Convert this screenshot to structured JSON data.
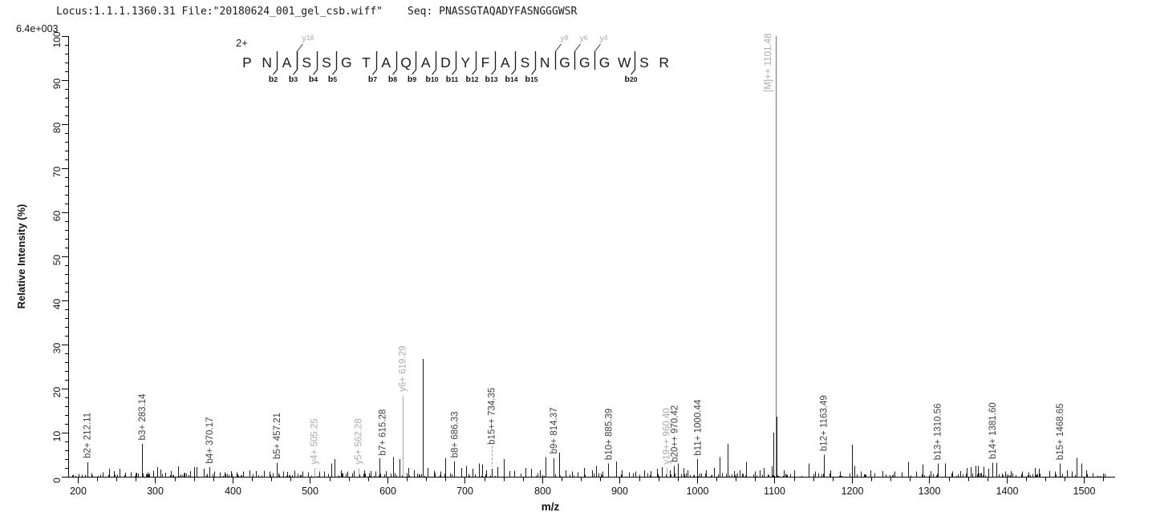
{
  "header": {
    "locus_file": "Locus:1.1.1.1360.31 File:\"20180624_001_gel_csb.wiff\"",
    "seq": "Seq: PNASSGTAQADYFASNGGGWSR"
  },
  "chart_data": {
    "type": "bar",
    "subtype": "mass-spectrum",
    "title": "",
    "xlabel": "m/z",
    "ylabel": "Relative Intensity (%)",
    "y_axis_top_label": "6.4e+003",
    "xlim": [
      187,
      1540
    ],
    "ylim": [
      0,
      100
    ],
    "x_ticks": [
      200,
      300,
      400,
      500,
      600,
      700,
      800,
      900,
      1000,
      1100,
      1200,
      1300,
      1400,
      1500
    ],
    "x_minor_step": 25,
    "y_ticks": [
      0,
      10,
      20,
      30,
      40,
      50,
      60,
      70,
      80,
      90,
      100
    ],
    "y_minor_step": 2,
    "grid": false,
    "colors": {
      "peak": "#1c1c1c",
      "y_ion": "#aaaaaa",
      "precursor": "#757575",
      "b_label": "#3e3e3e",
      "y_label": "#a9a9a9",
      "axis": "#000000"
    },
    "precursor": {
      "charge": "2+",
      "sequence": "PNASSGTAQADYFASNGGGWSR"
    },
    "sequence_annotation": {
      "charge": "2+",
      "residues": [
        "P",
        "N",
        "A",
        "S",
        "S",
        "G",
        "T",
        "A",
        "Q",
        "A",
        "D",
        "Y",
        "F",
        "A",
        "S",
        "N",
        "G",
        "G",
        "G",
        "W",
        "S",
        "R"
      ],
      "b_marks": [
        {
          "after": 2,
          "pre": "b",
          "num": "2"
        },
        {
          "after": 3,
          "pre": "b",
          "num": "3"
        },
        {
          "after": 4,
          "pre": "b",
          "num": "4"
        },
        {
          "after": 5,
          "pre": "b",
          "num": "5"
        },
        {
          "after": 7,
          "pre": "b",
          "num": "7"
        },
        {
          "after": 8,
          "pre": "b",
          "num": "8"
        },
        {
          "after": 9,
          "pre": "b",
          "num": "9"
        },
        {
          "after": 10,
          "pre": "b",
          "num": "10"
        },
        {
          "after": 11,
          "pre": "b",
          "num": "11"
        },
        {
          "after": 12,
          "pre": "b",
          "num": "12"
        },
        {
          "after": 13,
          "pre": "b",
          "num": "13"
        },
        {
          "after": 14,
          "pre": "b",
          "num": "14"
        },
        {
          "after": 15,
          "pre": "b",
          "num": "15"
        },
        {
          "after": 20,
          "pre": "b",
          "num": "20"
        }
      ],
      "y_marks": [
        {
          "after": 3,
          "pre": "y",
          "num": "18"
        },
        {
          "after": 16,
          "pre": "y",
          "num": "8"
        },
        {
          "after": 17,
          "pre": "y",
          "num": "6"
        },
        {
          "after": 18,
          "pre": "y",
          "num": "4"
        }
      ]
    },
    "peaks": [
      [
        212.11,
        3.3
      ],
      [
        218,
        0.8
      ],
      [
        232,
        1.0
      ],
      [
        240,
        1.8
      ],
      [
        247,
        1.3
      ],
      [
        254,
        1.8
      ],
      [
        261,
        0.9
      ],
      [
        268,
        1.0
      ],
      [
        276,
        0.9
      ],
      [
        283.14,
        7.5
      ],
      [
        290,
        1.0
      ],
      [
        297,
        1.4
      ],
      [
        303,
        2.2
      ],
      [
        307,
        1.6
      ],
      [
        313,
        0.9
      ],
      [
        320,
        1.3
      ],
      [
        330,
        2.4
      ],
      [
        338,
        0.9
      ],
      [
        345,
        1.3
      ],
      [
        350,
        2.2
      ],
      [
        353,
        2.2
      ],
      [
        363,
        1.8
      ],
      [
        370.17,
        2.2
      ],
      [
        376,
        1.2
      ],
      [
        383,
        1.0
      ],
      [
        390,
        1.0
      ],
      [
        398,
        1.3
      ],
      [
        405,
        1.0
      ],
      [
        413,
        1.2
      ],
      [
        422,
        1.5
      ],
      [
        430,
        1.3
      ],
      [
        440,
        1.4
      ],
      [
        448,
        1.2
      ],
      [
        457.21,
        3.2
      ],
      [
        465,
        1.2
      ],
      [
        470,
        1.1
      ],
      [
        480,
        1.4
      ],
      [
        490,
        1.2
      ],
      [
        497,
        1.0
      ],
      [
        505.25,
        2.0,
        "y"
      ],
      [
        512,
        1.2
      ],
      [
        518,
        1.2
      ],
      [
        527,
        3.0
      ],
      [
        532,
        4.0
      ],
      [
        540,
        1.5
      ],
      [
        548,
        1.2
      ],
      [
        556,
        1.4
      ],
      [
        562.28,
        2.0,
        "y"
      ],
      [
        570,
        1.5
      ],
      [
        578,
        1.3
      ],
      [
        585,
        1.2
      ],
      [
        590,
        4.2
      ],
      [
        598,
        1.3
      ],
      [
        607,
        4.5
      ],
      [
        615.28,
        4.0
      ],
      [
        619.29,
        18.5,
        "y"
      ],
      [
        627,
        2.0
      ],
      [
        634,
        1.5
      ],
      [
        645.7,
        26.7
      ],
      [
        652,
        2.0
      ],
      [
        660,
        1.4
      ],
      [
        668,
        1.2
      ],
      [
        675,
        4.2
      ],
      [
        686.33,
        3.5
      ],
      [
        695,
        2.0
      ],
      [
        702,
        2.5
      ],
      [
        710,
        1.8
      ],
      [
        718,
        3.0
      ],
      [
        722,
        2.8
      ],
      [
        728,
        1.5
      ],
      [
        734.35,
        1.8
      ],
      [
        742,
        2.2
      ],
      [
        750,
        4.0
      ],
      [
        758,
        1.3
      ],
      [
        764,
        1.4
      ],
      [
        778,
        2.0
      ],
      [
        786,
        1.8
      ],
      [
        797,
        1.5
      ],
      [
        804,
        4.5
      ],
      [
        814.37,
        4.2
      ],
      [
        822,
        5.5
      ],
      [
        830,
        1.5
      ],
      [
        838,
        1.2
      ],
      [
        846,
        1.0
      ],
      [
        854,
        2.0
      ],
      [
        864,
        1.5
      ],
      [
        870,
        2.5
      ],
      [
        878,
        1.2
      ],
      [
        885.39,
        3.0
      ],
      [
        895,
        3.5
      ],
      [
        903,
        1.5
      ],
      [
        912,
        1.0
      ],
      [
        920,
        1.2
      ],
      [
        932,
        1.5
      ],
      [
        940,
        1.3
      ],
      [
        948,
        1.8
      ],
      [
        955,
        2.2
      ],
      [
        960.4,
        2.0,
        "y"
      ],
      [
        965,
        1.5
      ],
      [
        970.42,
        2.5
      ],
      [
        975,
        3.0
      ],
      [
        982,
        2.0
      ],
      [
        988,
        1.5
      ],
      [
        1000.44,
        4.0
      ],
      [
        1012,
        1.5
      ],
      [
        1022,
        2.0
      ],
      [
        1029,
        4.5
      ],
      [
        1039.5,
        7.5
      ],
      [
        1048,
        1.3
      ],
      [
        1055,
        1.5
      ],
      [
        1063,
        3.4
      ],
      [
        1075,
        1.2
      ],
      [
        1081,
        1.5
      ],
      [
        1086,
        2.0
      ],
      [
        1096,
        2.4
      ],
      [
        1098.6,
        10.0
      ],
      [
        1101.48,
        100,
        "m"
      ],
      [
        1103.2,
        13.6
      ],
      [
        1112,
        1.5
      ],
      [
        1125,
        1.5
      ],
      [
        1144,
        3.0
      ],
      [
        1152,
        1.2
      ],
      [
        1163.49,
        5.0
      ],
      [
        1172,
        1.5
      ],
      [
        1185,
        1.2
      ],
      [
        1200,
        7.3
      ],
      [
        1203,
        2.5
      ],
      [
        1212,
        1.2
      ],
      [
        1224,
        1.5
      ],
      [
        1240,
        1.3
      ],
      [
        1255,
        1.2
      ],
      [
        1264,
        1.0
      ],
      [
        1273,
        3.4
      ],
      [
        1283,
        1.2
      ],
      [
        1291,
        2.8
      ],
      [
        1302,
        1.3
      ],
      [
        1310.56,
        3.0
      ],
      [
        1320,
        3.0
      ],
      [
        1330,
        1.2
      ],
      [
        1340,
        1.3
      ],
      [
        1348,
        2.0
      ],
      [
        1353,
        2.2
      ],
      [
        1360,
        2.5
      ],
      [
        1363,
        2.5
      ],
      [
        1370,
        2.3
      ],
      [
        1376,
        1.8
      ],
      [
        1381.6,
        3.2
      ],
      [
        1387,
        3.2
      ],
      [
        1398,
        1.2
      ],
      [
        1405,
        1.3
      ],
      [
        1420,
        1.2
      ],
      [
        1428,
        1.0
      ],
      [
        1436,
        2.0
      ],
      [
        1442,
        1.8
      ],
      [
        1455,
        1.3
      ],
      [
        1462,
        1.2
      ],
      [
        1468.65,
        3.0
      ],
      [
        1478,
        1.5
      ],
      [
        1484,
        1.2
      ],
      [
        1490,
        4.3
      ],
      [
        1497,
        3.0
      ],
      [
        1503,
        1.5
      ]
    ],
    "peak_labels": [
      {
        "text": "b2+ 212.11",
        "mz": 212.11,
        "label_pct": 4.2,
        "color": "b"
      },
      {
        "text": "b3+ 283.14",
        "mz": 283.14,
        "label_pct": 8.3,
        "color": "b"
      },
      {
        "text": "b4+ 370.17",
        "mz": 370.17,
        "label_pct": 3.0,
        "color": "b"
      },
      {
        "text": "b5+ 457.21",
        "mz": 457.21,
        "label_pct": 4.0,
        "color": "b"
      },
      {
        "text": "y4+ 505.25",
        "mz": 505.25,
        "label_pct": 2.8,
        "color": "y"
      },
      {
        "text": "y5+ 562.28",
        "mz": 562.28,
        "label_pct": 2.8,
        "color": "y"
      },
      {
        "text": "b7+ 615.28",
        "mz": 615.28,
        "label_pct": 4.8,
        "color": "b",
        "dx": -21
      },
      {
        "text": "y6+ 619.29",
        "mz": 619.29,
        "label_pct": 19.3,
        "color": "y"
      },
      {
        "text": "b8+ 686.33",
        "mz": 686.33,
        "label_pct": 4.3,
        "color": "b"
      },
      {
        "text": "b15++ 734.35",
        "mz": 734.35,
        "label_pct": 7.3,
        "color": "b",
        "leader": {
          "from_pct": 7.0,
          "to_pct": 2.2,
          "dashed": true
        }
      },
      {
        "text": "b9+ 814.37",
        "mz": 814.37,
        "label_pct": 5.2,
        "color": "b"
      },
      {
        "text": "b10+ 885.39",
        "mz": 885.39,
        "label_pct": 3.8,
        "color": "b"
      },
      {
        "text": "y19++ 960.40",
        "mz": 960.4,
        "label_pct": 2.8,
        "color": "y"
      },
      {
        "text": "b20++ 970.42",
        "mz": 970.42,
        "label_pct": 3.3,
        "color": "b"
      },
      {
        "text": "b11+ 1000.44",
        "mz": 1000.44,
        "label_pct": 4.8,
        "color": "b"
      },
      {
        "text": "[M]++ 1101.48",
        "mz": 1101.48,
        "label_pct": 87.3,
        "color": "y",
        "dx": -10
      },
      {
        "text": "b12+ 1163.49",
        "mz": 1163.49,
        "label_pct": 5.8,
        "color": "b"
      },
      {
        "text": "b13+ 1310.56",
        "mz": 1310.56,
        "label_pct": 3.8,
        "color": "b"
      },
      {
        "text": "b14+ 1381.60",
        "mz": 1381.6,
        "label_pct": 4.0,
        "color": "b"
      },
      {
        "text": "b15+ 1468.65",
        "mz": 1468.65,
        "label_pct": 3.8,
        "color": "b"
      }
    ],
    "baseline_noise": {
      "seed": 7,
      "count": 290,
      "mz_min": 192,
      "mz_max": 1530,
      "pct_min": 0.15,
      "pct_max": 0.85
    }
  }
}
